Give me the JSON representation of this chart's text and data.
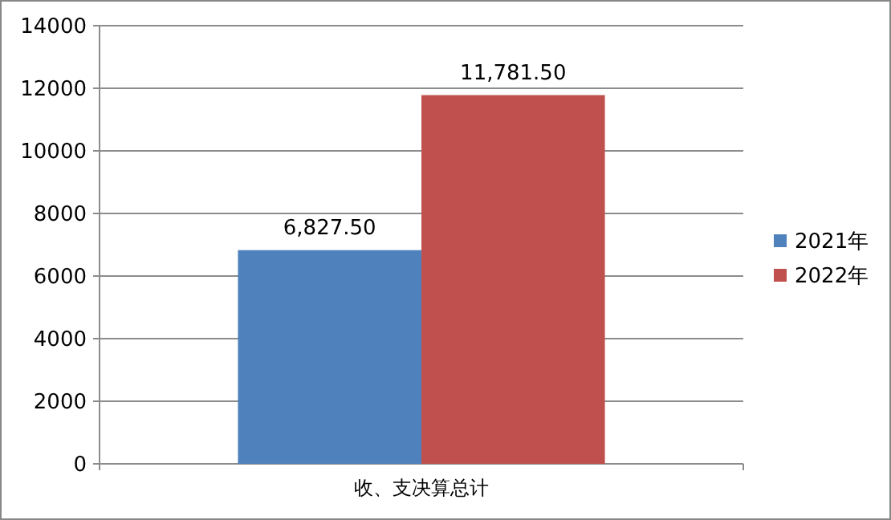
{
  "chart_data": {
    "type": "bar",
    "categories": [
      "收、支决算总计"
    ],
    "series": [
      {
        "name": "2021年",
        "color": "#4f81bd",
        "values": [
          6827.5
        ],
        "value_labels": [
          "6,827.50"
        ]
      },
      {
        "name": "2022年",
        "color": "#c0504d",
        "values": [
          11781.5
        ],
        "value_labels": [
          "11,781.50"
        ]
      }
    ],
    "ylim": [
      0,
      14000
    ],
    "yticks": [
      0,
      2000,
      4000,
      6000,
      8000,
      10000,
      12000,
      14000
    ],
    "grid": "y",
    "legend": "right"
  }
}
